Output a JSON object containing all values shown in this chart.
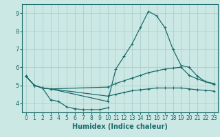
{
  "xlabel": "Humidex (Indice chaleur)",
  "xlim": [
    -0.5,
    23.5
  ],
  "ylim": [
    3.5,
    9.5
  ],
  "yticks": [
    4,
    5,
    6,
    7,
    8,
    9
  ],
  "xticks": [
    0,
    1,
    2,
    3,
    4,
    5,
    6,
    7,
    8,
    9,
    10,
    11,
    12,
    13,
    14,
    15,
    16,
    17,
    18,
    19,
    20,
    21,
    22,
    23
  ],
  "bg_color": "#cce8e4",
  "grid_color": "#aacfcc",
  "line_color": "#1a6b6b",
  "lines": [
    {
      "x": [
        0,
        1,
        2,
        3,
        10,
        11,
        12,
        13,
        14,
        15,
        16,
        17,
        18,
        19,
        20,
        21,
        22,
        23
      ],
      "y": [
        5.5,
        5.0,
        4.85,
        4.8,
        4.1,
        5.9,
        6.6,
        7.3,
        8.2,
        9.1,
        8.85,
        8.2,
        7.0,
        6.1,
        6.0,
        5.5,
        5.2,
        5.1
      ]
    },
    {
      "x": [
        0,
        1,
        2,
        3,
        10,
        11,
        12,
        13,
        14,
        15,
        16,
        17,
        18,
        19,
        20,
        21,
        22,
        23
      ],
      "y": [
        5.5,
        5.0,
        4.85,
        4.8,
        4.9,
        5.1,
        5.25,
        5.4,
        5.55,
        5.7,
        5.8,
        5.9,
        5.95,
        6.0,
        5.55,
        5.35,
        5.2,
        5.05
      ]
    },
    {
      "x": [
        0,
        1,
        2,
        3,
        10,
        11,
        12,
        13,
        14,
        15,
        16,
        17,
        18,
        19,
        20,
        21,
        22,
        23
      ],
      "y": [
        5.5,
        5.0,
        4.85,
        4.8,
        4.4,
        4.5,
        4.6,
        4.7,
        4.75,
        4.8,
        4.85,
        4.85,
        4.85,
        4.85,
        4.8,
        4.75,
        4.72,
        4.68
      ]
    },
    {
      "x": [
        0,
        1,
        2,
        3,
        4,
        5,
        6,
        7,
        8,
        9,
        10
      ],
      "y": [
        5.5,
        5.0,
        4.85,
        4.2,
        4.1,
        3.8,
        3.7,
        3.65,
        3.65,
        3.65,
        3.75
      ]
    }
  ]
}
